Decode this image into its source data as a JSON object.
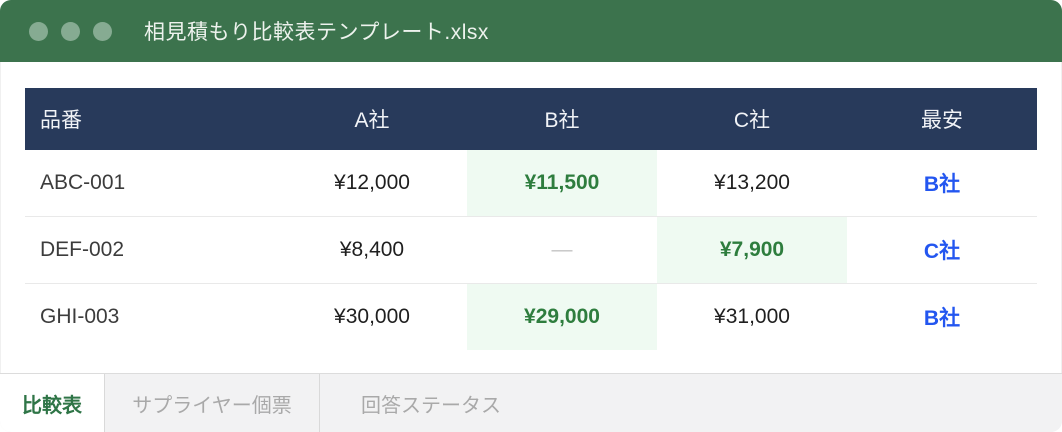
{
  "window": {
    "title": "相見積もり比較表テンプレート.xlsx"
  },
  "colors": {
    "titlebar_green": "#3c734d",
    "traffic_light": "#86ab92",
    "header_navy": "#283a5b",
    "best_bg": "#effaf2",
    "best_green": "#2e7d3e",
    "winner_blue": "#2356f0",
    "active_tab_green": "#2f7547"
  },
  "table": {
    "columns": [
      "品番",
      "A社",
      "B社",
      "C社",
      "最安"
    ],
    "rows": [
      {
        "part": "ABC-001",
        "a": "¥12,000",
        "b": "¥11,500",
        "c": "¥13,200",
        "best": "B社"
      },
      {
        "part": "DEF-002",
        "a": "¥8,400",
        "b": "—",
        "c": "¥7,900",
        "best": "C社"
      },
      {
        "part": "GHI-003",
        "a": "¥30,000",
        "b": "¥29,000",
        "c": "¥31,000",
        "best": "B社"
      }
    ]
  },
  "tabs": [
    {
      "label": "比較表"
    },
    {
      "label": "サプライヤー個票"
    },
    {
      "label": "回答ステータス"
    }
  ]
}
